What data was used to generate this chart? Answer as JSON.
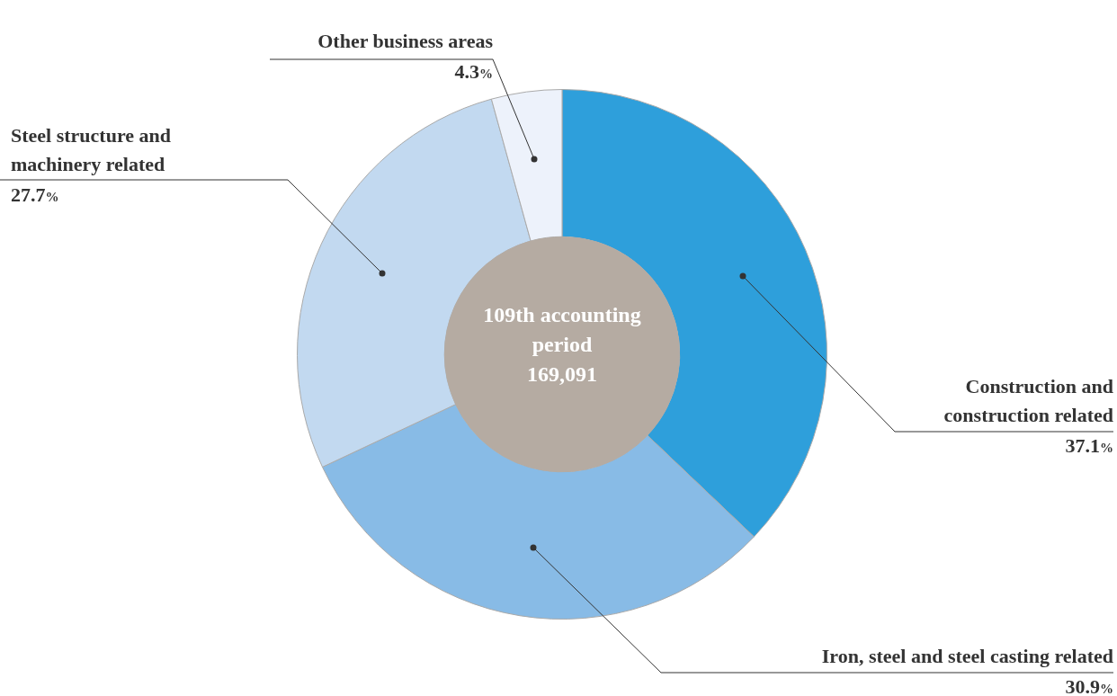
{
  "chart_data": {
    "type": "donut",
    "categories": [
      "Construction and construction related",
      "Iron, steel and steel casting related",
      "Steel structure and machinery related",
      "Other business areas"
    ],
    "values": [
      37.1,
      30.9,
      27.7,
      4.3
    ],
    "value_labels": [
      "37.1%",
      "30.9%",
      "27.7%",
      "4.3%"
    ],
    "colors": [
      "#2e9fdb",
      "#88bbe6",
      "#c2d9f0",
      "#edf2fb"
    ],
    "annotations": [
      "109th accounting period",
      "169,091"
    ],
    "legend": false
  }
}
